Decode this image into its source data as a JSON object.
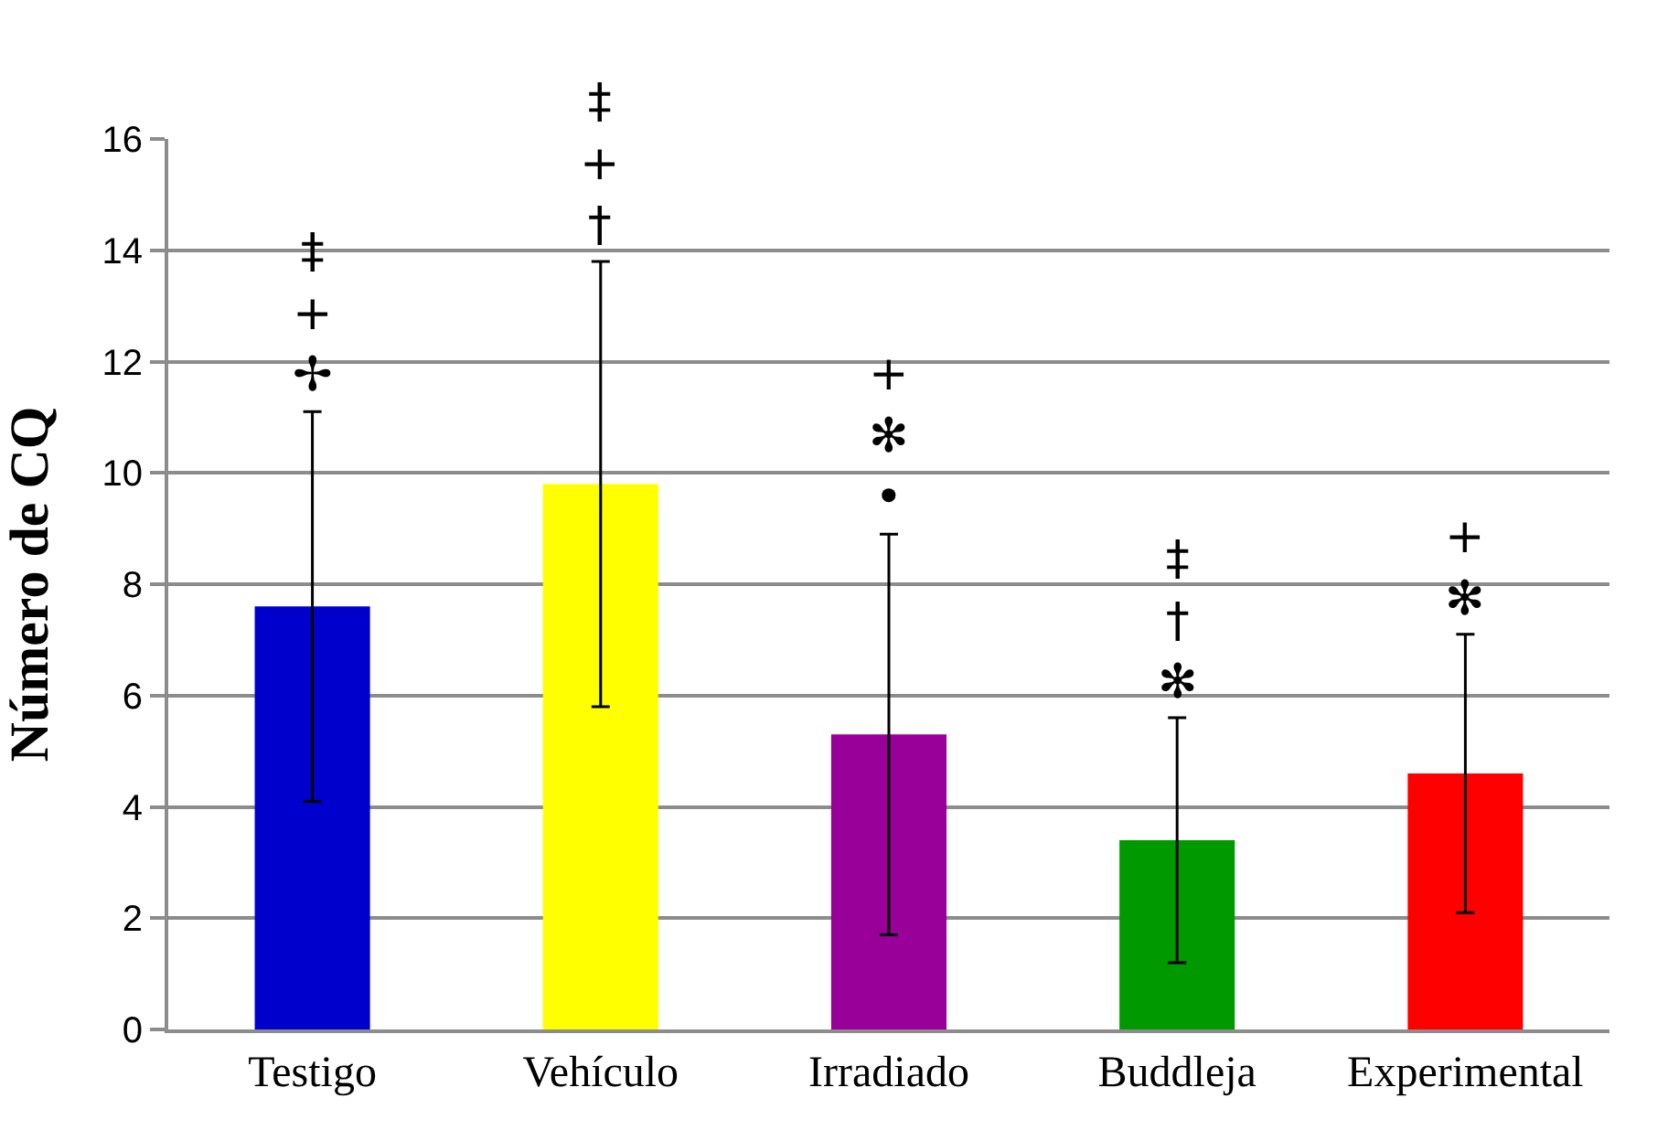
{
  "chart_data": {
    "type": "bar",
    "ylabel": "Número de CQ",
    "categories": [
      "Testigo",
      "Vehículo",
      "Irradiado",
      "Buddleja",
      "Experimental"
    ],
    "values": [
      7.6,
      9.8,
      5.3,
      3.4,
      4.6
    ],
    "errors": [
      3.5,
      4.0,
      3.6,
      2.2,
      2.5
    ],
    "colors": [
      "#0000cc",
      "#ffff00",
      "#990099",
      "#009900",
      "#ff0000"
    ],
    "ylim": [
      0,
      16
    ],
    "yticks": [
      0,
      2,
      4,
      6,
      8,
      10,
      12,
      14,
      16
    ],
    "grid": "y",
    "annotations": [
      {
        "text": "‡\n+\n✢",
        "x": "Testigo",
        "y": 11.1
      },
      {
        "text": "‡\n+\n†",
        "x": "Vehículo",
        "y": 13.8
      },
      {
        "text": "+\n✻\n•",
        "x": "Irradiado",
        "y": 8.9
      },
      {
        "text": "‡\n†\n✻",
        "x": "Buddleja",
        "y": 5.6
      },
      {
        "text": "+\n✻",
        "x": "Experimental",
        "y": 7.1
      }
    ]
  }
}
